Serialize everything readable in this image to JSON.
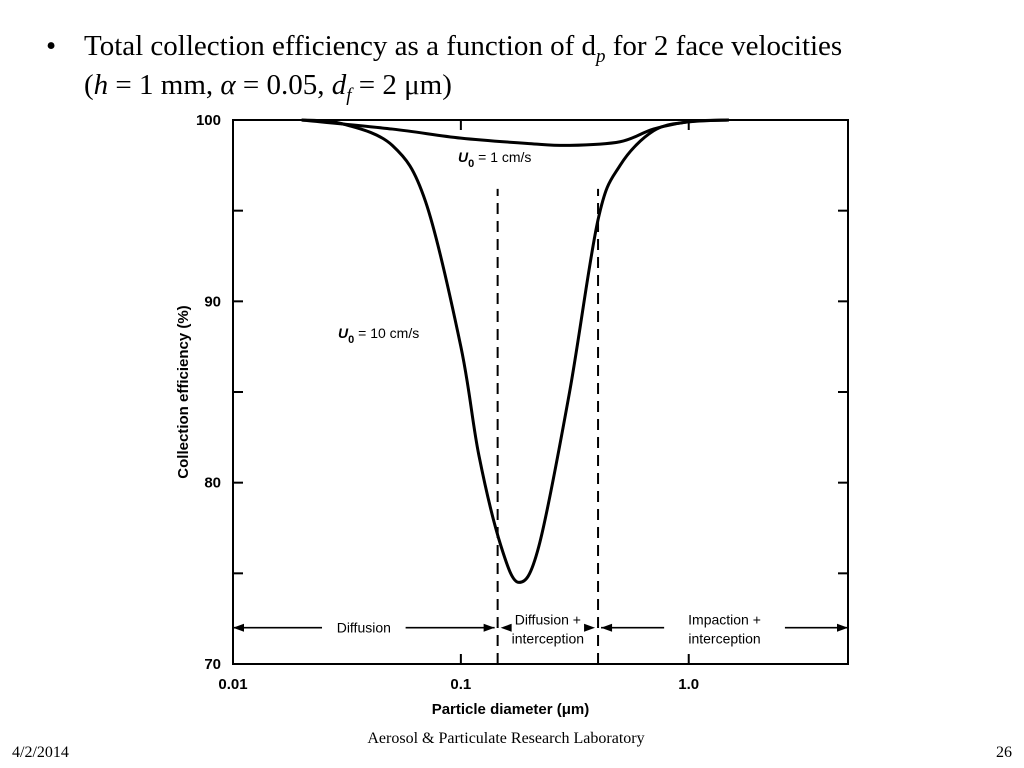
{
  "slide": {
    "bullet_symbol": "•",
    "line1": "Total collection efficiency as a function of d",
    "line1_sub": "p",
    "line1_tail": " for 2 face velocities",
    "line2_parts": [
      "(",
      "h",
      " = 1 mm, ",
      "α",
      " = 0.05, ",
      "d",
      "f",
      " = 2 μm)"
    ]
  },
  "footer": {
    "date": "4/2/2014",
    "org": "Aerosol & Particulate Research Laboratory",
    "page": "26"
  },
  "chart_data": {
    "type": "line",
    "x_scale": "log",
    "xlim": [
      0.01,
      5.0
    ],
    "ylim": [
      70,
      100
    ],
    "xlabel": "Particle diameter (μm)",
    "ylabel": "Collection efficiency (%)",
    "x_ticks": [
      {
        "value": 0.01,
        "label": "0.01"
      },
      {
        "value": 0.1,
        "label": "0.1"
      },
      {
        "value": 1.0,
        "label": "1.0"
      }
    ],
    "y_ticks": [
      {
        "value": 70,
        "label": "70"
      },
      {
        "value": 80,
        "label": "80"
      },
      {
        "value": 90,
        "label": "90"
      },
      {
        "value": 100,
        "label": "100"
      }
    ],
    "series": [
      {
        "name": "U0 = 1 cm/s",
        "label_main": "U",
        "label_sub": "0",
        "label_rest": " = 1 cm/s",
        "x": [
          0.02,
          0.05,
          0.1,
          0.2,
          0.3,
          0.5,
          0.7,
          1.0,
          1.5
        ],
        "y": [
          100.0,
          99.5,
          99.0,
          98.7,
          98.6,
          98.8,
          99.5,
          99.9,
          100.0
        ]
      },
      {
        "name": "U0 = 10 cm/s",
        "label_main": "U",
        "label_sub": "0",
        "label_rest": " = 10 cm/s",
        "x": [
          0.02,
          0.03,
          0.05,
          0.07,
          0.1,
          0.12,
          0.15,
          0.18,
          0.22,
          0.3,
          0.4,
          0.5,
          0.7,
          1.0,
          1.5
        ],
        "y": [
          100.0,
          99.8,
          98.6,
          95.5,
          87.5,
          81.5,
          76.5,
          74.5,
          76.5,
          85.0,
          94.5,
          97.5,
          99.4,
          99.9,
          100.0
        ]
      }
    ],
    "regions": [
      {
        "label_lines": [
          "Diffusion"
        ],
        "from": 0.01,
        "to": 0.145
      },
      {
        "label_lines": [
          "Diffusion +",
          "interception"
        ],
        "from": 0.145,
        "to": 0.4
      },
      {
        "label_lines": [
          "Impaction +",
          "interception"
        ],
        "from": 0.4,
        "to": 5.0
      }
    ],
    "region_boundaries": [
      0.145,
      0.4
    ],
    "grid": false,
    "legend": "none"
  }
}
